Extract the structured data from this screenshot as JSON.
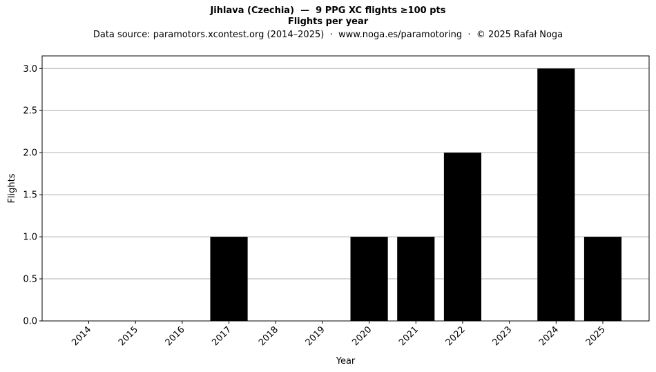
{
  "chart_data": {
    "type": "bar",
    "title": "Jihlava (Czechia)  —  9 PPG XC flights ≥100 pts",
    "subtitle": "Flights per year",
    "source": "Data source: paramotors.xcontest.org (2014–2025)  ·  www.noga.es/paramotoring  ·  © 2025 Rafał Noga",
    "xlabel": "Year",
    "ylabel": "Flights",
    "categories": [
      "2014",
      "2015",
      "2016",
      "2017",
      "2018",
      "2019",
      "2020",
      "2021",
      "2022",
      "2023",
      "2024",
      "2025"
    ],
    "values": [
      0,
      0,
      0,
      1,
      0,
      0,
      1,
      1,
      2,
      0,
      3,
      1
    ],
    "ylim": [
      0,
      3.15
    ],
    "yticks": [
      "0.0",
      "0.5",
      "1.0",
      "1.5",
      "2.0",
      "2.5",
      "3.0"
    ],
    "grid": "horizontal",
    "bar_color": "#000000",
    "grid_color": "#b0b0b0"
  }
}
